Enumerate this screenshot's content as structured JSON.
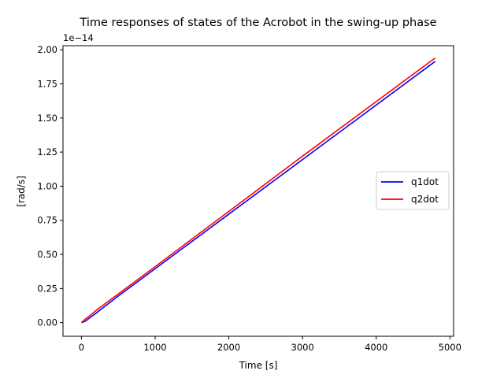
{
  "chart_data": {
    "type": "line",
    "title": "Time responses of states of the Acrobot in the swing-up phase",
    "xlabel": "Time [s]",
    "ylabel": "[rad/s]",
    "y_offset_label": "1e−14",
    "xlim": [
      -250,
      5050
    ],
    "ylim": [
      -0.1,
      2.03
    ],
    "x_ticks": [
      0,
      1000,
      2000,
      3000,
      4000,
      5000
    ],
    "x_tick_labels": [
      "0",
      "1000",
      "2000",
      "3000",
      "4000",
      "5000"
    ],
    "y_ticks": [
      0.0,
      0.25,
      0.5,
      0.75,
      1.0,
      1.25,
      1.5,
      1.75,
      2.0
    ],
    "y_tick_labels": [
      "0.00",
      "0.25",
      "0.50",
      "0.75",
      "1.00",
      "1.25",
      "1.50",
      "1.75",
      "2.00"
    ],
    "grid": false,
    "legend_position": "center-right",
    "series": [
      {
        "name": "q1dot",
        "color": "#0000ff",
        "x": [
          0,
          50,
          100,
          200,
          500,
          1000,
          2000,
          3000,
          4000,
          4800
        ],
        "y": [
          0.0,
          0.01,
          0.03,
          0.07,
          0.195,
          0.395,
          0.795,
          1.195,
          1.595,
          1.915
        ]
      },
      {
        "name": "q2dot",
        "color": "#ff0000",
        "x": [
          0,
          50,
          100,
          200,
          500,
          1000,
          2000,
          3000,
          4000,
          4800
        ],
        "y": [
          0.0,
          0.025,
          0.045,
          0.09,
          0.21,
          0.41,
          0.815,
          1.22,
          1.62,
          1.94
        ]
      }
    ]
  }
}
